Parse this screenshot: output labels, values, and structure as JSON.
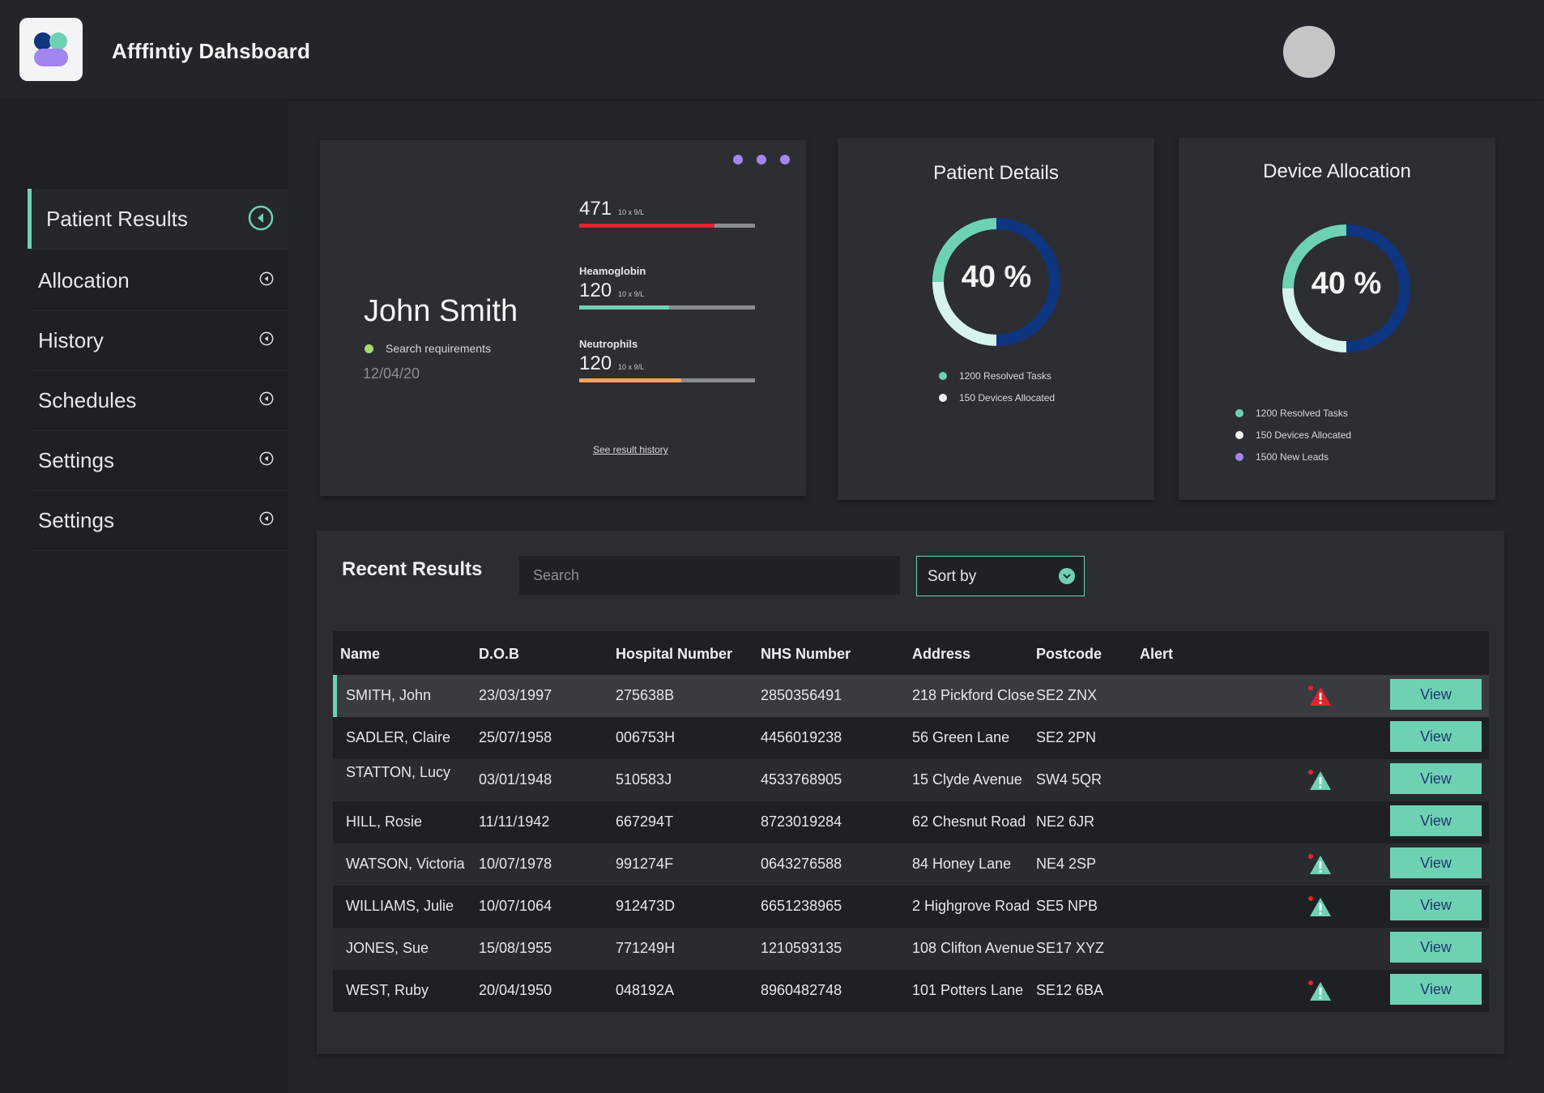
{
  "app": {
    "title": "Afffintiy Dahsboard"
  },
  "sidebar": {
    "items": [
      {
        "label": "Patient Results",
        "active": true
      },
      {
        "label": "Allocation"
      },
      {
        "label": "History"
      },
      {
        "label": "Schedules"
      },
      {
        "label": "Settings"
      },
      {
        "label": "Settings"
      }
    ]
  },
  "patient": {
    "name": "John Smith",
    "status": "Search requirements",
    "date": "12/04/20",
    "history_link": "See result history",
    "metrics": [
      {
        "label": "",
        "value": "471",
        "unit": "10 x 9/L",
        "fill_pct": 77,
        "color": "#e0262c"
      },
      {
        "label": "Heamoglobin",
        "value": "120",
        "unit": "10 x 9/L",
        "fill_pct": 51,
        "color": "#6fd1b3"
      },
      {
        "label": "Neutrophils",
        "value": "120",
        "unit": "10 x 9/L",
        "fill_pct": 58,
        "color": "#f7a35c"
      }
    ]
  },
  "patient_details": {
    "title": "Patient Details",
    "percent": "40 %",
    "legend": [
      "1200 Resolved Tasks",
      "150 Devices Allocated"
    ]
  },
  "device_allocation": {
    "title": "Device Allocation",
    "percent": "40 %",
    "legend": [
      "1200 Resolved Tasks",
      "150 Devices Allocated",
      "1500 New Leads"
    ]
  },
  "results": {
    "title": "Recent Results",
    "search_placeholder": "Search",
    "sort_label": "Sort by",
    "columns": [
      "Name",
      "D.O.B",
      "Hospital Number",
      "NHS Number",
      "Address",
      "Postcode",
      "Alert"
    ],
    "view_label": "View",
    "rows": [
      {
        "name": "SMITH, John",
        "dob": "23/03/1997",
        "hospital": "275638B",
        "nhs": "2850356491",
        "address": "218 Pickford Close",
        "postcode": "SE2 ZNX",
        "alert": "red"
      },
      {
        "name": "SADLER, Claire",
        "dob": "25/07/1958",
        "hospital": "006753H",
        "nhs": "4456019238",
        "address": "56 Green Lane",
        "postcode": "SE2 2PN",
        "alert": "none"
      },
      {
        "name": "STATTON, Lucy",
        "dob": "03/01/1948",
        "hospital": "510583J",
        "nhs": "4533768905",
        "address": "15 Clyde Avenue",
        "postcode": "SW4 5QR",
        "alert": "green"
      },
      {
        "name": "HILL, Rosie",
        "dob": "11/11/1942",
        "hospital": "667294T",
        "nhs": "8723019284",
        "address": "62 Chesnut Road",
        "postcode": "NE2 6JR",
        "alert": "none"
      },
      {
        "name": "WATSON, Victoria",
        "dob": "10/07/1978",
        "hospital": "991274F",
        "nhs": "0643276588",
        "address": "84 Honey Lane",
        "postcode": "NE4 2SP",
        "alert": "green"
      },
      {
        "name": "WILLIAMS, Julie",
        "dob": "10/07/1064",
        "hospital": "912473D",
        "nhs": "6651238965",
        "address": "2 Highgrove Road",
        "postcode": "SE5 NPB",
        "alert": "green"
      },
      {
        "name": "JONES, Sue",
        "dob": "15/08/1955",
        "hospital": "771249H",
        "nhs": "1210593135",
        "address": "108 Clifton Avenue",
        "postcode": "SE17 XYZ",
        "alert": "none"
      },
      {
        "name": "WEST, Ruby",
        "dob": "20/04/1950",
        "hospital": "048192A",
        "nhs": "8960482748",
        "address": "101 Potters Lane",
        "postcode": "SE12 6BA",
        "alert": "green"
      }
    ]
  },
  "colors": {
    "accent": "#6fd1b3",
    "navy": "#0d3580",
    "purple": "#a286f0",
    "danger": "#e0262c",
    "light_teal": "#d6f3ee"
  }
}
